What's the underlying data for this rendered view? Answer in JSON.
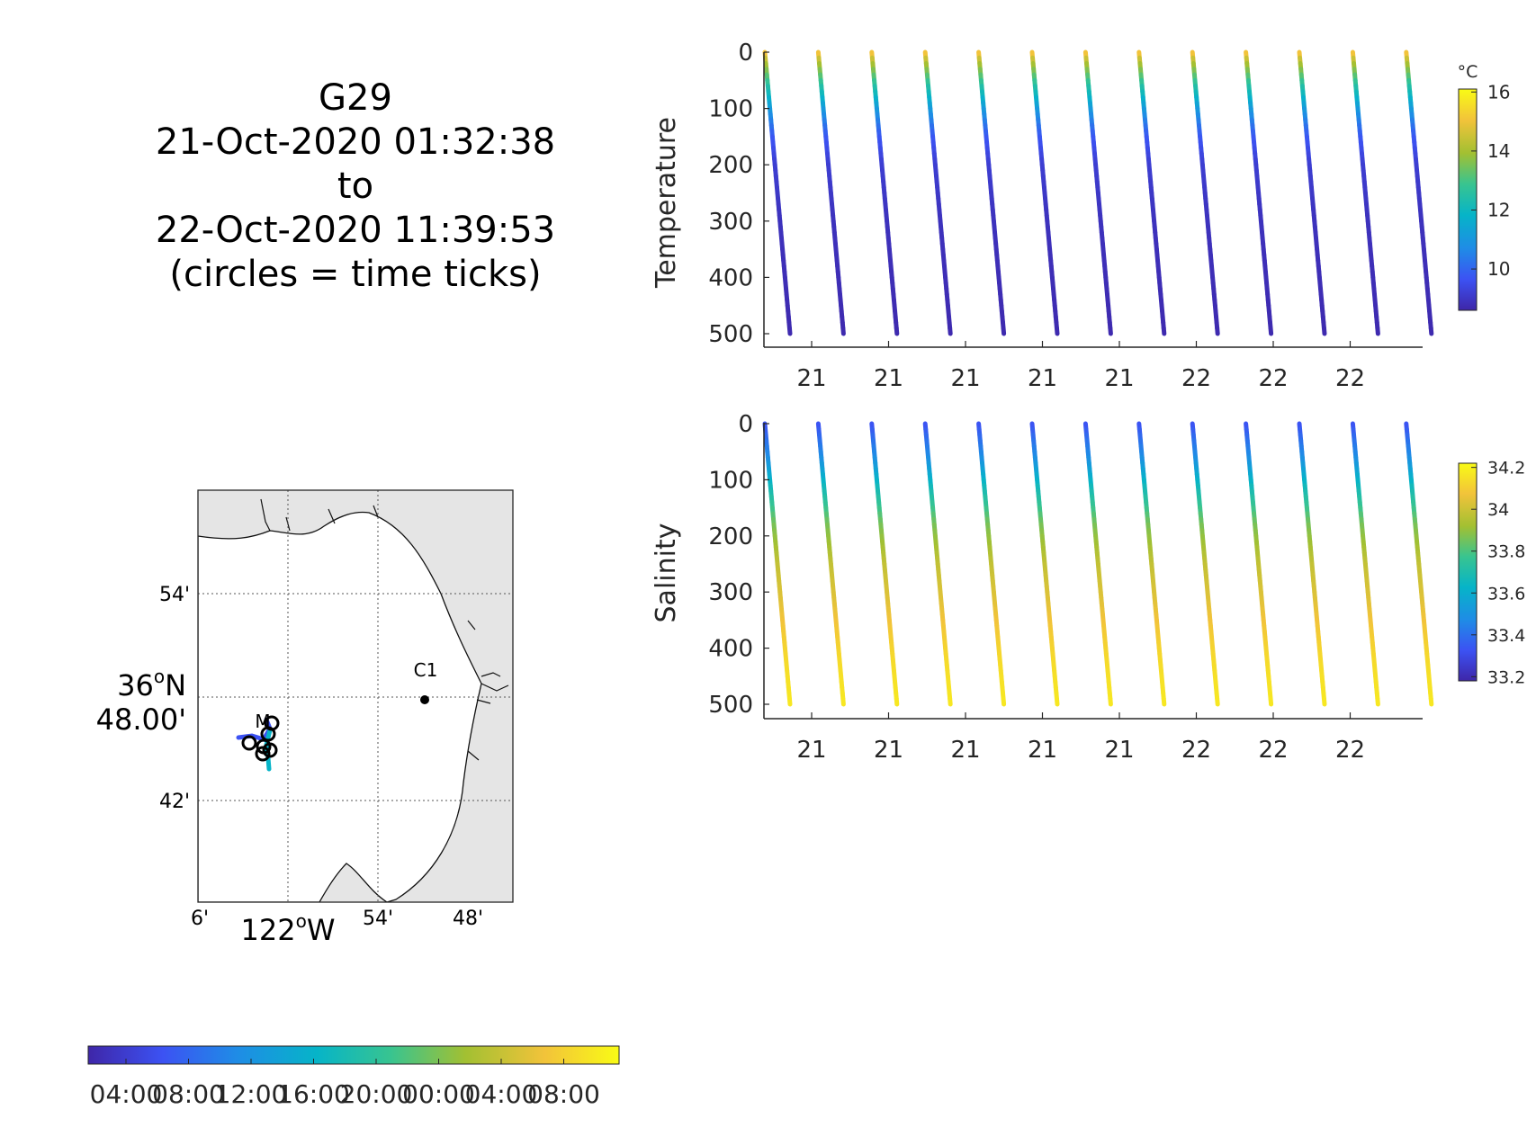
{
  "header": {
    "lines": [
      "G29",
      "21-Oct-2020 01:32:38",
      "to",
      "22-Oct-2020 11:39:53",
      "(circles = time ticks)"
    ]
  },
  "chart_data": [
    {
      "type": "line",
      "ylabel": "Temperature",
      "ylim": [
        0,
        500
      ],
      "y_reversed": true,
      "y_ticks": [
        0,
        100,
        200,
        300,
        400,
        500
      ],
      "x_tick_labels": [
        "21",
        "21",
        "21",
        "21",
        "21",
        "22",
        "22",
        "22"
      ],
      "profiles": 13,
      "series": [
        {
          "depth": [
            0,
            20,
            60,
            100,
            150,
            200,
            300,
            500
          ],
          "value": [
            15.3,
            14.2,
            12.6,
            11.2,
            9.8,
            9.2,
            8.9,
            8.7
          ]
        }
      ],
      "colorbar": {
        "unit": "°C",
        "ticks": [
          16,
          14,
          12,
          10
        ],
        "range": [
          8.6,
          16.1
        ],
        "colors": [
          "#3e26a8",
          "#3c52f3",
          "#1f8ce6",
          "#06b4c8",
          "#38c490",
          "#a2c032",
          "#f2c33a",
          "#f9fb15"
        ]
      }
    },
    {
      "type": "line",
      "ylabel": "Salinity",
      "ylim": [
        0,
        500
      ],
      "y_reversed": true,
      "y_ticks": [
        0,
        100,
        200,
        300,
        400,
        500
      ],
      "x_tick_labels": [
        "21",
        "21",
        "21",
        "21",
        "21",
        "22",
        "22",
        "22"
      ],
      "profiles": 13,
      "series": [
        {
          "depth": [
            0,
            60,
            120,
            180,
            250,
            330,
            420,
            500
          ],
          "value": [
            33.32,
            33.48,
            33.68,
            33.86,
            33.98,
            34.05,
            34.13,
            34.17
          ]
        }
      ],
      "colorbar": {
        "ticks": [
          "34.2",
          "34",
          "33.8",
          "33.6",
          "33.4",
          "33.2"
        ],
        "tick_values": [
          34.2,
          34.0,
          33.8,
          33.6,
          33.4,
          33.2
        ],
        "range": [
          33.18,
          34.22
        ],
        "colors": [
          "#3e26a8",
          "#3c52f3",
          "#1f8ce6",
          "#06b4c8",
          "#38c490",
          "#a2c032",
          "#f2c33a",
          "#f9fb15"
        ]
      }
    }
  ],
  "map": {
    "lat_ticks": [
      "54'",
      "48.00'",
      "42'"
    ],
    "lat_major": "36",
    "lat_major_suffix": "N",
    "lon_ticks": [
      "6'",
      "54'",
      "48'"
    ],
    "lon_major": "122",
    "lon_major_suffix": "W",
    "degree_mark": "o",
    "stations": [
      {
        "label": "C1"
      },
      {
        "label": "M"
      }
    ]
  },
  "time_colorbar": {
    "ticks": [
      "04:00",
      "08:00",
      "12:00",
      "16:00",
      "20:00",
      "00:00",
      "04:00",
      "08:00"
    ],
    "colors": [
      "#3e26a8",
      "#3c52f3",
      "#1f8ce6",
      "#06b4c8",
      "#38c490",
      "#a2c032",
      "#f2c33a",
      "#f9fb15"
    ]
  }
}
